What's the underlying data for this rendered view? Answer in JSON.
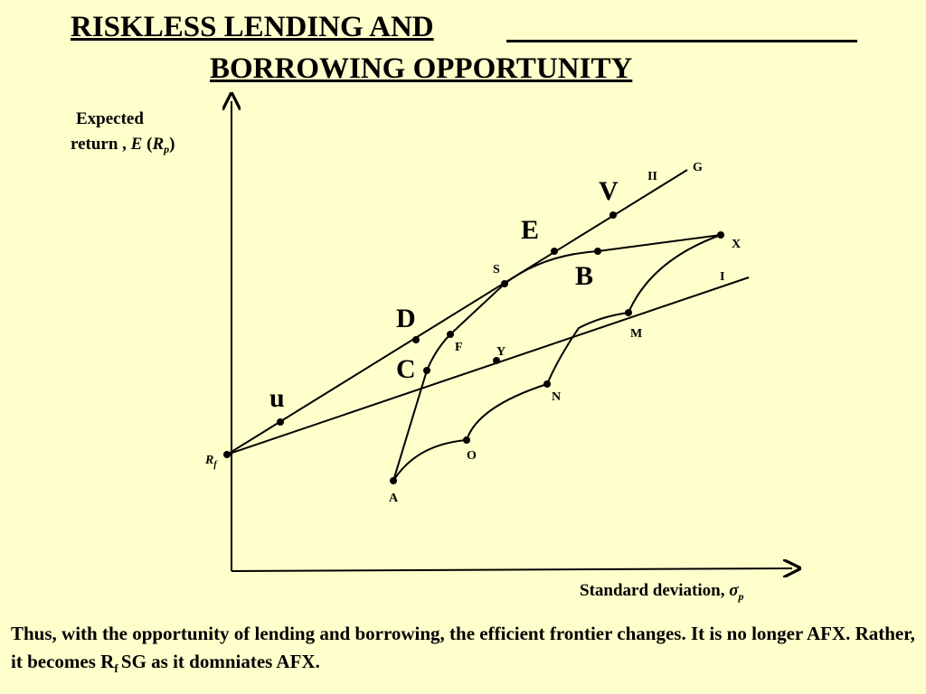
{
  "title": {
    "line1": "RISKLESS LENDING AND",
    "line2": "BORROWING OPPORTUNITY"
  },
  "axes": {
    "y_label_line1": "Expected",
    "y_label_line2_prefix": "return , ",
    "y_label_E": "E",
    "y_label_R": "R",
    "y_label_sub": "p",
    "x_label_prefix": "Standard deviation, ",
    "x_label_sigma": "σ",
    "x_label_sub": "p"
  },
  "points": {
    "rf_R": "R",
    "rf_sub": "f",
    "u": "u",
    "C": "C",
    "D": "D",
    "F": "F",
    "Y": "Y",
    "S": "S",
    "E": "E",
    "B": "B",
    "V": "V",
    "II": "II",
    "G": "G",
    "X": "X",
    "I": "I",
    "M": "M",
    "N": "N",
    "O": "O",
    "A": "A"
  },
  "caption": {
    "part1": "Thus, with the opportunity of lending and borrowing, the efficient frontier changes. It is no longer AFX. Rather, it becomes R",
    "sub": "f ",
    "part2": "SG as it domniates AFX."
  }
}
